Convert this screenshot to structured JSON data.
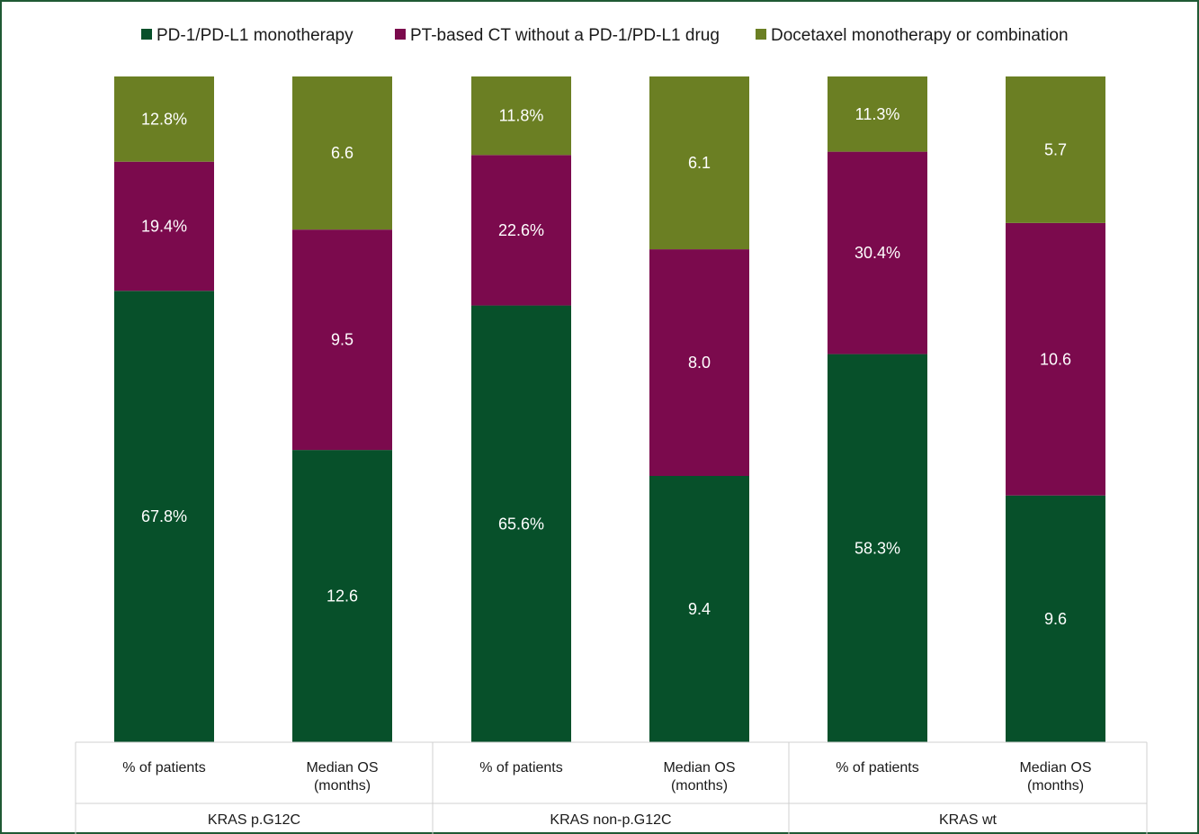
{
  "chart_data": {
    "type": "bar",
    "stacked": true,
    "normalized": true,
    "legend_position": "top",
    "grid": false,
    "series": [
      {
        "name": "PD-1/PD-L1 monotherapy",
        "color": "#07502a",
        "values": [
          67.8,
          12.6,
          65.6,
          9.4,
          58.3,
          9.6
        ],
        "labels": [
          "67.8%",
          "12.6",
          "65.6%",
          "9.4",
          "58.3%",
          "9.6"
        ]
      },
      {
        "name": "PT-based CT without a PD-1/PD-L1 drug",
        "color": "#7b0a4d",
        "values": [
          19.4,
          9.5,
          22.6,
          8.0,
          30.4,
          10.6
        ],
        "labels": [
          "19.4%",
          "9.5",
          "22.6%",
          "8.0",
          "30.4%",
          "10.6"
        ]
      },
      {
        "name": "Docetaxel monotherapy or combination",
        "color": "#6b7f23",
        "values": [
          12.8,
          6.6,
          11.8,
          6.1,
          11.3,
          5.7
        ],
        "labels": [
          "12.8%",
          "6.6",
          "11.8%",
          "6.1",
          "11.3%",
          "5.7"
        ]
      }
    ],
    "categories": [
      {
        "label": [
          "% of patients"
        ],
        "group": 0
      },
      {
        "label": [
          "Median OS",
          "(months)"
        ],
        "group": 0
      },
      {
        "label": [
          "% of patients"
        ],
        "group": 1
      },
      {
        "label": [
          "Median OS",
          "(months)"
        ],
        "group": 1
      },
      {
        "label": [
          "% of patients"
        ],
        "group": 2
      },
      {
        "label": [
          "Median OS",
          "(months)"
        ],
        "group": 2
      }
    ],
    "groups": [
      "KRAS p.G12C",
      "KRAS non-p.G12C",
      "KRAS wt"
    ]
  },
  "colors": {
    "frame_border": "#1f5a34",
    "axis_lines": "#d0d0d0"
  }
}
